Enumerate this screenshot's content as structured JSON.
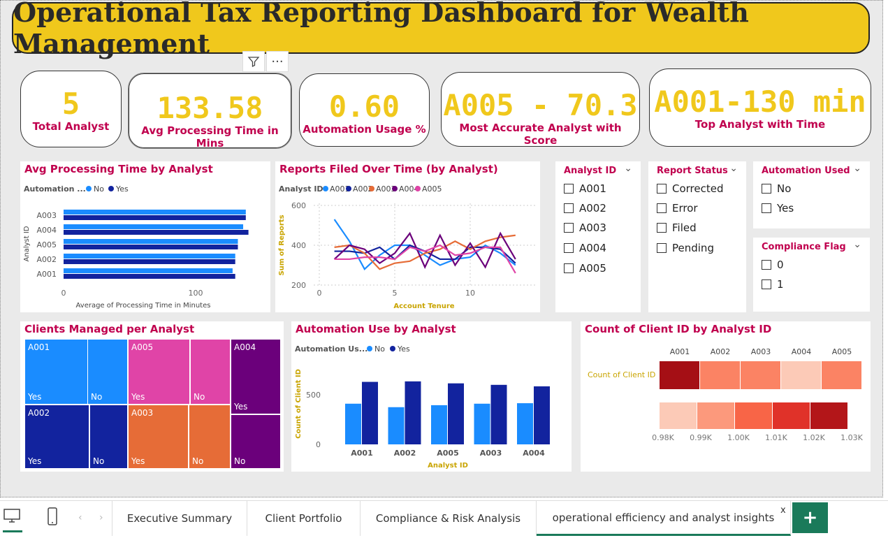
{
  "title": "Operational Tax Reporting Dashboard for Wealth Management",
  "kpis": {
    "total_analyst": {
      "value": "5",
      "label": "Total Analyst"
    },
    "avg_processing": {
      "value": "133.58",
      "label": "Avg Processing Time in Mins"
    },
    "automation_usage": {
      "value": "0.60",
      "label": "Automation Usage %"
    },
    "most_accurate": {
      "value": "A005 - 70.3",
      "label": "Most Accurate Analyst with Score"
    },
    "top_analyst": {
      "value": "A001-130 min",
      "label": "Top Analyst with Time"
    }
  },
  "colors": {
    "accent": "#f0c81c",
    "title_text": "#c0004e",
    "no": "#1a8cff",
    "yes": "#12239e",
    "A001": "#1a8cff",
    "A002": "#12239e",
    "A003": "#e66c37",
    "A004": "#6b007b",
    "A005": "#e044a7"
  },
  "avg_chart": {
    "title": "Avg Processing Time by Analyst",
    "legend_title": "Automation ...",
    "legend": [
      "No",
      "Yes"
    ],
    "xlabel": "Average of Processing Time in Minutes",
    "ylabel": "Analyst ID",
    "xticks": [
      "0",
      "100"
    ]
  },
  "reports_chart": {
    "title": "Reports Filed Over Time (by Analyst)",
    "legend_title": "Analyst ID",
    "legend": [
      "A001",
      "A002",
      "A003",
      "A004",
      "A005"
    ],
    "xlabel": "Account Tenure",
    "ylabel": "Sum of Reports",
    "yticks": [
      "600",
      "400",
      "200"
    ],
    "xticks": [
      "0",
      "5",
      "10"
    ]
  },
  "slicers": {
    "analyst": {
      "title": "Analyst ID",
      "options": [
        "A001",
        "A002",
        "A003",
        "A004",
        "A005"
      ]
    },
    "status": {
      "title": "Report Status",
      "options": [
        "Corrected",
        "Error",
        "Filed",
        "Pending"
      ]
    },
    "automation": {
      "title": "Automation Used",
      "options": [
        "No",
        "Yes"
      ]
    },
    "compliance": {
      "title": "Compliance Flag",
      "options": [
        "0",
        "1"
      ]
    }
  },
  "treemap": {
    "title": "Clients Managed per Analyst",
    "cells": [
      {
        "analyst": "A001",
        "flag": "Yes"
      },
      {
        "flag": "No"
      },
      {
        "analyst": "A005",
        "flag": "Yes"
      },
      {
        "flag": "No"
      },
      {
        "analyst": "A004",
        "flag": "Yes"
      },
      {
        "flag": "No"
      },
      {
        "analyst": "A002",
        "flag": "Yes"
      },
      {
        "flag": "No"
      },
      {
        "analyst": "A003",
        "flag": "Yes"
      },
      {
        "flag": "No"
      }
    ]
  },
  "automation_chart": {
    "title": "Automation Use by Analyst",
    "legend_title": "Automation Us...",
    "legend": [
      "No",
      "Yes"
    ],
    "xlabel": "Analyst ID",
    "ylabel": "Count of Client ID",
    "yticks": [
      "500",
      "0"
    ]
  },
  "heatmap": {
    "title": "Count of Client ID by Analyst ID",
    "row_label": "Count of Client ID",
    "columns": [
      "A001",
      "A002",
      "A003",
      "A004",
      "A005"
    ],
    "scale_labels": [
      "0.98K",
      "0.99K",
      "1.00K",
      "1.01K",
      "1.02K",
      "1.03K"
    ]
  },
  "tabs": [
    "Executive Summary",
    "Client Portfolio",
    "Compliance & Risk Analysis",
    "operational efficiency and analyst insights"
  ],
  "tab_close": "x",
  "add_tab": "+",
  "chart_data": [
    {
      "type": "bar",
      "orientation": "horizontal",
      "title": "Avg Processing Time by Analyst",
      "categories": [
        "A003",
        "A004",
        "A005",
        "A002",
        "A001"
      ],
      "series": [
        {
          "name": "No",
          "values": [
            138,
            136,
            132,
            130,
            128
          ]
        },
        {
          "name": "Yes",
          "values": [
            138,
            140,
            132,
            130,
            130
          ]
        }
      ],
      "xlabel": "Average of Processing Time in Minutes",
      "ylabel": "Analyst ID",
      "xlim": [
        0,
        155
      ]
    },
    {
      "type": "line",
      "title": "Reports Filed Over Time (by Analyst)",
      "x": [
        1,
        2,
        3,
        4,
        5,
        6,
        7,
        8,
        9,
        10,
        11,
        12,
        13
      ],
      "series": [
        {
          "name": "A001",
          "values": [
            530,
            420,
            280,
            350,
            400,
            400,
            350,
            300,
            330,
            340,
            400,
            360,
            300
          ]
        },
        {
          "name": "A002",
          "values": [
            370,
            370,
            360,
            390,
            330,
            400,
            370,
            330,
            330,
            390,
            390,
            380,
            310
          ]
        },
        {
          "name": "A003",
          "values": [
            390,
            400,
            360,
            280,
            310,
            320,
            360,
            380,
            420,
            380,
            420,
            440,
            450
          ]
        },
        {
          "name": "A004",
          "values": [
            330,
            400,
            380,
            310,
            360,
            460,
            290,
            450,
            300,
            410,
            290,
            460,
            330
          ]
        },
        {
          "name": "A005",
          "values": [
            330,
            330,
            340,
            340,
            330,
            390,
            370,
            400,
            350,
            360,
            390,
            390,
            260
          ]
        }
      ],
      "xlabel": "Account Tenure",
      "ylabel": "Sum of Reports",
      "ylim": [
        200,
        600
      ],
      "xlim": [
        0,
        14
      ]
    },
    {
      "type": "bar",
      "title": "Automation Use by Analyst",
      "categories": [
        "A001",
        "A002",
        "A005",
        "A003",
        "A004"
      ],
      "series": [
        {
          "name": "No",
          "values": [
            410,
            375,
            395,
            410,
            415
          ]
        },
        {
          "name": "Yes",
          "values": [
            630,
            635,
            615,
            600,
            585
          ]
        }
      ],
      "xlabel": "Analyst ID",
      "ylabel": "Count of Client ID",
      "ylim": [
        0,
        800
      ]
    },
    {
      "type": "heatmap",
      "title": "Count of Client ID by Analyst ID",
      "categories": [
        "A001",
        "A002",
        "A003",
        "A004",
        "A005"
      ],
      "values": [
        1030,
        1000,
        1000,
        985,
        1000
      ]
    }
  ]
}
